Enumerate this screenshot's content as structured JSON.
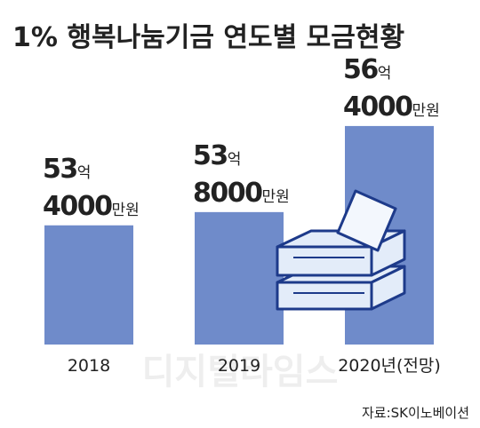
{
  "chart_data": {
    "type": "bar",
    "title": "1% 행복나눔기금 연도별 모금현황",
    "categories": [
      "2018",
      "2019",
      "2020년(전망)"
    ],
    "values": [
      534000,
      538000,
      564000
    ],
    "value_labels": [
      "53억 4000만원",
      "53억 8000만원",
      "56억 4000만원"
    ],
    "color": "#6f8bca",
    "ylim": [
      498000,
      568000
    ],
    "source": "자료:SK이노베이션",
    "watermark": "디지털타임스"
  }
}
